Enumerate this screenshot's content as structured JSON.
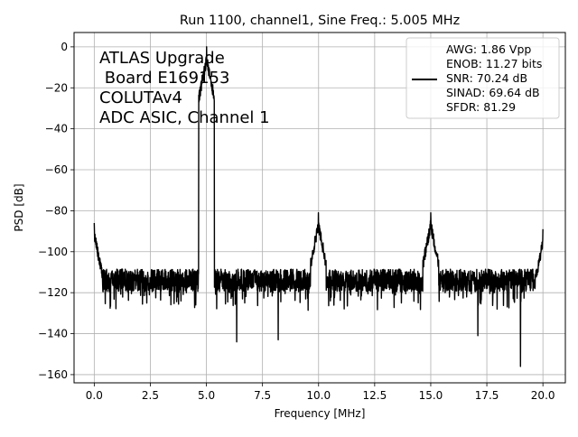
{
  "chart_data": {
    "type": "line",
    "title": "Run 1100, channel1, Sine Freq.: 5.005 MHz",
    "xlabel": "Frequency [MHz]",
    "ylabel": "PSD [dB]",
    "xlim": [
      -0.9,
      21.0
    ],
    "ylim": [
      -164,
      7
    ],
    "x_ticks": [
      0.0,
      2.5,
      5.0,
      7.5,
      10.0,
      12.5,
      15.0,
      17.5,
      20.0
    ],
    "x_tick_labels": [
      "0.0",
      "2.5",
      "5.0",
      "7.5",
      "10.0",
      "12.5",
      "15.0",
      "17.5",
      "20.0"
    ],
    "y_ticks": [
      0,
      -20,
      -40,
      -60,
      -80,
      -100,
      -120,
      -140,
      -160
    ],
    "y_tick_labels": [
      "0",
      "−20",
      "−40",
      "−60",
      "−80",
      "−100",
      "−120",
      "−140",
      "−160"
    ],
    "grid": true,
    "line_color": "#000000",
    "annotation": [
      "ATLAS Upgrade",
      " Board E169153",
      "COLUTAv4",
      "ADC ASIC, Channel 1"
    ],
    "legend": {
      "placement": "upper right",
      "lines": [
        "AWG: 1.86 Vpp",
        "ENOB: 11.27 bits",
        "SNR: 70.24 dB",
        "SINAD: 69.64 dB",
        "SFDR: 81.29"
      ]
    },
    "series": [
      {
        "x_start": 0.0,
        "x_end": 20.0,
        "noise_floor_db": -114,
        "noise_spread_db": 10,
        "peaks": [
          {
            "x": 0.0,
            "y": -86
          },
          {
            "x": 5.005,
            "y": 0
          },
          {
            "x": 9.99,
            "y": -81
          },
          {
            "x": 15.0,
            "y": -81
          },
          {
            "x": 20.0,
            "y": -89
          }
        ],
        "dips": [
          {
            "x": 6.35,
            "y": -144
          },
          {
            "x": 8.2,
            "y": -143
          },
          {
            "x": 17.1,
            "y": -141
          },
          {
            "x": 19.0,
            "y": -156
          }
        ]
      }
    ]
  }
}
